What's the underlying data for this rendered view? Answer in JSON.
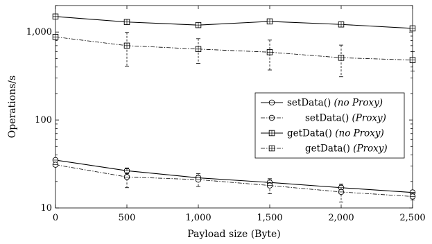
{
  "chart_data": {
    "type": "line",
    "title": "",
    "xlabel": "Payload size (Byte)",
    "ylabel": "Operations/s",
    "x": [
      0,
      500,
      1000,
      1500,
      2000,
      2500
    ],
    "xlim": [
      0,
      2500
    ],
    "ylim": [
      10,
      2000
    ],
    "yscale": "log",
    "grid": false,
    "legend_position": "right",
    "x_ticks": [
      {
        "value": 0,
        "label": "0"
      },
      {
        "value": 500,
        "label": "500"
      },
      {
        "value": 1000,
        "label": "1,000"
      },
      {
        "value": 1500,
        "label": "1,500"
      },
      {
        "value": 2000,
        "label": "2,000"
      },
      {
        "value": 2500,
        "label": "2,500"
      }
    ],
    "y_ticks": [
      {
        "value": 10,
        "label": "10"
      },
      {
        "value": 100,
        "label": "100"
      },
      {
        "value": 1000,
        "label": "1,000"
      }
    ],
    "series": [
      {
        "name": "setData()",
        "name_suffix": "(no Proxy)",
        "marker": "circle",
        "dashed": false,
        "values": [
          35,
          26.5,
          22,
          19.5,
          17,
          15
        ],
        "error": [
          0,
          2,
          1.5,
          1.2,
          1.2,
          0.8
        ]
      },
      {
        "name": "setData()",
        "name_suffix": "(Proxy)",
        "marker": "circle",
        "dashed": true,
        "values": [
          31,
          22.5,
          21,
          18,
          15.2,
          13.5
        ],
        "error": [
          1,
          5.5,
          3.5,
          3.5,
          3.5,
          1.2
        ]
      },
      {
        "name": "getData()",
        "name_suffix": "(no Proxy)",
        "marker": "square",
        "dashed": false,
        "values": [
          1500,
          1300,
          1200,
          1320,
          1220,
          1100
        ],
        "error": [
          0,
          0,
          0,
          0,
          60,
          40
        ]
      },
      {
        "name": "getData()",
        "name_suffix": "(Proxy)",
        "marker": "square",
        "dashed": true,
        "values": [
          880,
          700,
          640,
          590,
          510,
          480
        ],
        "error": [
          30,
          290,
          200,
          220,
          200,
          120
        ]
      }
    ]
  }
}
